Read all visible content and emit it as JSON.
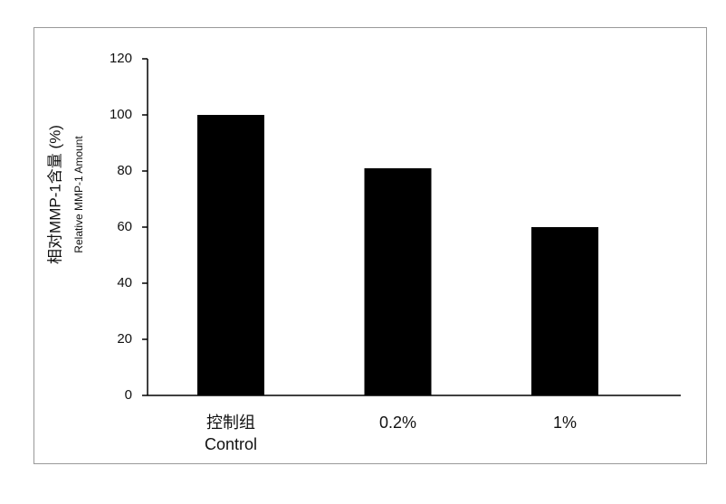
{
  "chart_data": {
    "type": "bar",
    "ylabel": [
      "相对MMP-1含量 (%)",
      "Relative MMP-1 Amount"
    ],
    "categories": [
      "控制组\nControl",
      "0.2%",
      "1%"
    ],
    "values": [
      100,
      81,
      60
    ],
    "color": "#000000",
    "ylim": [
      0,
      120
    ],
    "yticks": [
      0,
      20,
      40,
      60,
      80,
      100,
      120
    ],
    "grid": false
  }
}
